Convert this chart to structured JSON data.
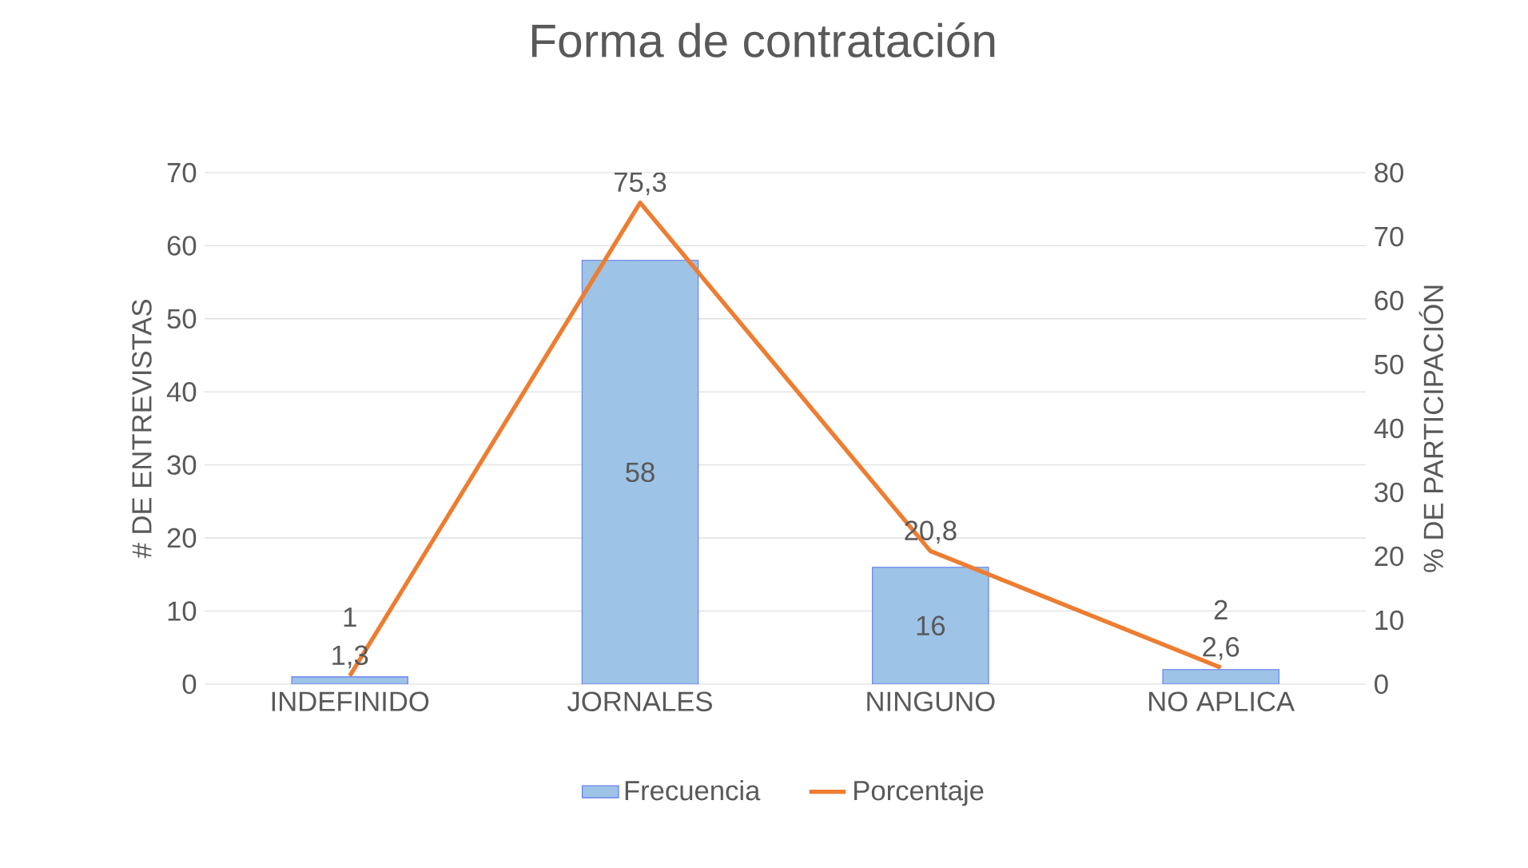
{
  "chart_data": {
    "type": "bar",
    "title": "Forma de contratación",
    "ylabel": "# DE ENTREVISTAS",
    "y2label": "% DE PARTICIPACIÓN",
    "categories": [
      "INDEFINIDO",
      "JORNALES",
      "NINGUNO",
      "NO APLICA"
    ],
    "series": [
      {
        "name": "Frecuencia",
        "color": "#9dc3e6",
        "values": [
          1,
          58,
          16,
          2
        ],
        "value_labels": [
          "1",
          "58",
          "16",
          "2"
        ]
      },
      {
        "name": "Porcentaje",
        "type": "line",
        "axis": "y2",
        "color": "#ed7d31",
        "values": [
          1.3,
          75.3,
          20.8,
          2.6
        ],
        "value_labels": [
          "1,3",
          "75,3",
          "20,8",
          "2,6"
        ]
      }
    ],
    "ylim": [
      0,
      70
    ],
    "yticks": [
      0,
      10,
      20,
      30,
      40,
      50,
      60,
      70
    ],
    "y2lim": [
      0,
      80
    ],
    "y2ticks": [
      0,
      10,
      20,
      30,
      40,
      50,
      60,
      70,
      80
    ],
    "grid": "y",
    "legend": "bottom",
    "marker": "none"
  }
}
